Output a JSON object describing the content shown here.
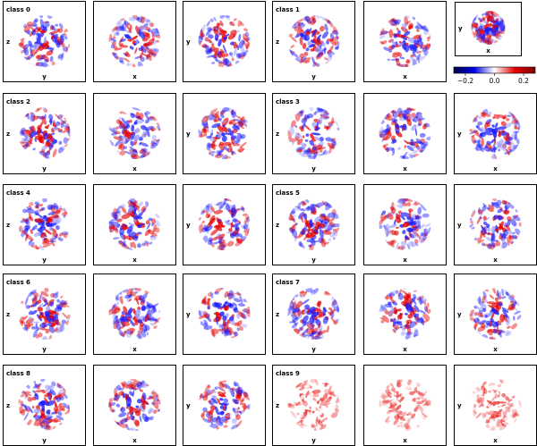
{
  "chart_data": {
    "type": "heatmap",
    "description_grid": "5 rows x 6 columns of projection panels; each row holds two classes, each class has three projections",
    "classes": [
      {
        "label": "class 0",
        "projections": [
          {
            "vlabel": "z",
            "hlabel": "y"
          },
          {
            "vlabel": "",
            "hlabel": "x"
          },
          {
            "vlabel": "y",
            "hlabel": ""
          }
        ]
      },
      {
        "label": "class 1",
        "projections": [
          {
            "vlabel": "z",
            "hlabel": "y"
          },
          {
            "vlabel": "",
            "hlabel": "x"
          },
          {
            "vlabel": "y",
            "hlabel": "x"
          }
        ]
      },
      {
        "label": "class 2",
        "projections": [
          {
            "vlabel": "z",
            "hlabel": "y"
          },
          {
            "vlabel": "",
            "hlabel": "x"
          },
          {
            "vlabel": "y",
            "hlabel": ""
          }
        ]
      },
      {
        "label": "class 3",
        "projections": [
          {
            "vlabel": "z",
            "hlabel": "y"
          },
          {
            "vlabel": "",
            "hlabel": "x"
          },
          {
            "vlabel": "y",
            "hlabel": "x"
          }
        ]
      },
      {
        "label": "class 4",
        "projections": [
          {
            "vlabel": "z",
            "hlabel": "y"
          },
          {
            "vlabel": "",
            "hlabel": "x"
          },
          {
            "vlabel": "y",
            "hlabel": ""
          }
        ]
      },
      {
        "label": "class 5",
        "projections": [
          {
            "vlabel": "z",
            "hlabel": "y"
          },
          {
            "vlabel": "",
            "hlabel": "x"
          },
          {
            "vlabel": "y",
            "hlabel": "x"
          }
        ]
      },
      {
        "label": "class 6",
        "projections": [
          {
            "vlabel": "z",
            "hlabel": "y"
          },
          {
            "vlabel": "",
            "hlabel": "x"
          },
          {
            "vlabel": "y",
            "hlabel": ""
          }
        ]
      },
      {
        "label": "class 7",
        "projections": [
          {
            "vlabel": "z",
            "hlabel": "y"
          },
          {
            "vlabel": "",
            "hlabel": "x"
          },
          {
            "vlabel": "y",
            "hlabel": "x"
          }
        ]
      },
      {
        "label": "class 8",
        "projections": [
          {
            "vlabel": "z",
            "hlabel": "y"
          },
          {
            "vlabel": "",
            "hlabel": "x"
          },
          {
            "vlabel": "y",
            "hlabel": ""
          }
        ]
      },
      {
        "label": "class 9",
        "projections": [
          {
            "vlabel": "z",
            "hlabel": "y"
          },
          {
            "vlabel": "",
            "hlabel": "x"
          },
          {
            "vlabel": "y",
            "hlabel": "x"
          }
        ]
      }
    ],
    "colorbar": {
      "ticks": [
        "−0.2",
        "0.0",
        "0.2"
      ],
      "range": [
        -0.28,
        0.28
      ],
      "colormap": "seismic",
      "colors": {
        "negative": "#0000b4",
        "zero": "#ffffff",
        "positive": "#b40000"
      }
    },
    "grid": false
  }
}
